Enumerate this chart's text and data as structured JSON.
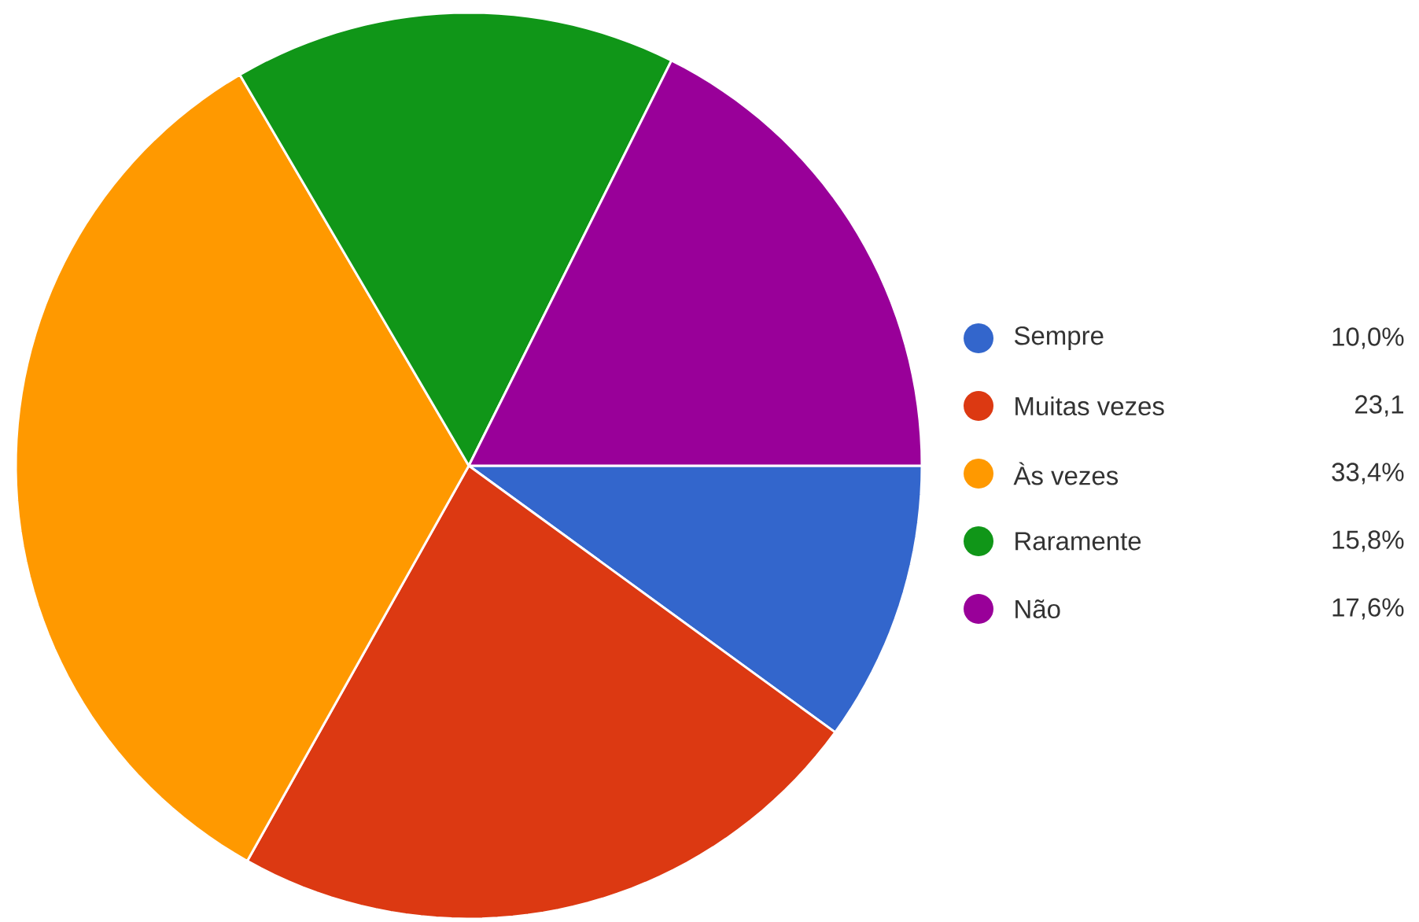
{
  "chart_data": {
    "type": "pie",
    "categories": [
      "Sempre",
      "Muitas vezes",
      "Às vezes",
      "Raramente",
      "Não"
    ],
    "values": [
      10.0,
      23.1,
      33.4,
      15.8,
      17.6
    ],
    "colors": [
      "#3366cc",
      "#dc3912",
      "#ff9900",
      "#109618",
      "#990099"
    ],
    "value_labels": [
      "10,0%",
      "23,1",
      "33,4%",
      "15,8%",
      "17,6%"
    ],
    "legend": "right"
  }
}
